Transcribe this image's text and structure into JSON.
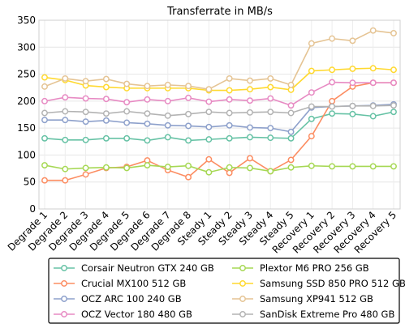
{
  "chart_data": {
    "type": "line",
    "title": "Transferrate in MB/s",
    "xlabel": "",
    "ylabel": "",
    "ylim": [
      0,
      350
    ],
    "yticks": [
      0,
      50,
      100,
      150,
      200,
      250,
      300,
      350
    ],
    "grid": true,
    "legend_position": "bottom",
    "categories": [
      "Degrade 1",
      "Degrade 2",
      "Degrade 3",
      "Degrade 4",
      "Degrade 5",
      "Degrade 6",
      "Degrade 7",
      "Degrade 8",
      "Steady 1",
      "Steady 2",
      "Steady 3",
      "Steady 4",
      "Steady 5",
      "Recovery 1",
      "Recovery 2",
      "Recovery 3",
      "Recovery 4",
      "Recovery 5"
    ],
    "series": [
      {
        "name": "Corsair Neutron GTX 240 GB",
        "color": "#66c2a5",
        "values": [
          131,
          128,
          128,
          131,
          131,
          127,
          133,
          127,
          129,
          131,
          133,
          132,
          131,
          167,
          177,
          176,
          172,
          180
        ]
      },
      {
        "name": "Crucial MX100 512 GB",
        "color": "#fc8d62",
        "values": [
          53,
          53,
          64,
          76,
          78,
          90,
          72,
          59,
          92,
          67,
          94,
          70,
          91,
          135,
          200,
          227,
          234,
          234
        ]
      },
      {
        "name": "OCZ ARC 100 240 GB",
        "color": "#8da0cb",
        "values": [
          165,
          165,
          162,
          164,
          160,
          158,
          155,
          154,
          152,
          155,
          151,
          150,
          143,
          188,
          190,
          191,
          192,
          194
        ]
      },
      {
        "name": "OCZ Vector 180 480 GB",
        "color": "#e78ac3",
        "values": [
          200,
          207,
          205,
          204,
          198,
          203,
          200,
          206,
          199,
          203,
          201,
          205,
          192,
          216,
          235,
          234,
          234,
          234
        ]
      },
      {
        "name": "Plextor M6 PRO 256 GB",
        "color": "#a6d854",
        "values": [
          81,
          74,
          76,
          77,
          76,
          81,
          78,
          80,
          68,
          77,
          76,
          70,
          77,
          80,
          79,
          79,
          79,
          79
        ]
      },
      {
        "name": "Samsung SSD 850 PRO 512 GB",
        "color": "#ffd92f",
        "values": [
          244,
          239,
          229,
          226,
          224,
          224,
          224,
          224,
          220,
          220,
          222,
          226,
          221,
          256,
          258,
          260,
          261,
          258
        ]
      },
      {
        "name": "Samsung XP941 512 GB",
        "color": "#e5c494",
        "values": [
          227,
          242,
          237,
          241,
          232,
          228,
          230,
          228,
          222,
          242,
          238,
          242,
          230,
          307,
          316,
          312,
          331,
          326
        ]
      },
      {
        "name": "SanDisk Extreme Pro 480 GB",
        "color": "#b3b3b3",
        "values": [
          178,
          181,
          180,
          177,
          181,
          177,
          173,
          176,
          180,
          178,
          179,
          180,
          178,
          190,
          190,
          191,
          191,
          192
        ]
      }
    ]
  }
}
